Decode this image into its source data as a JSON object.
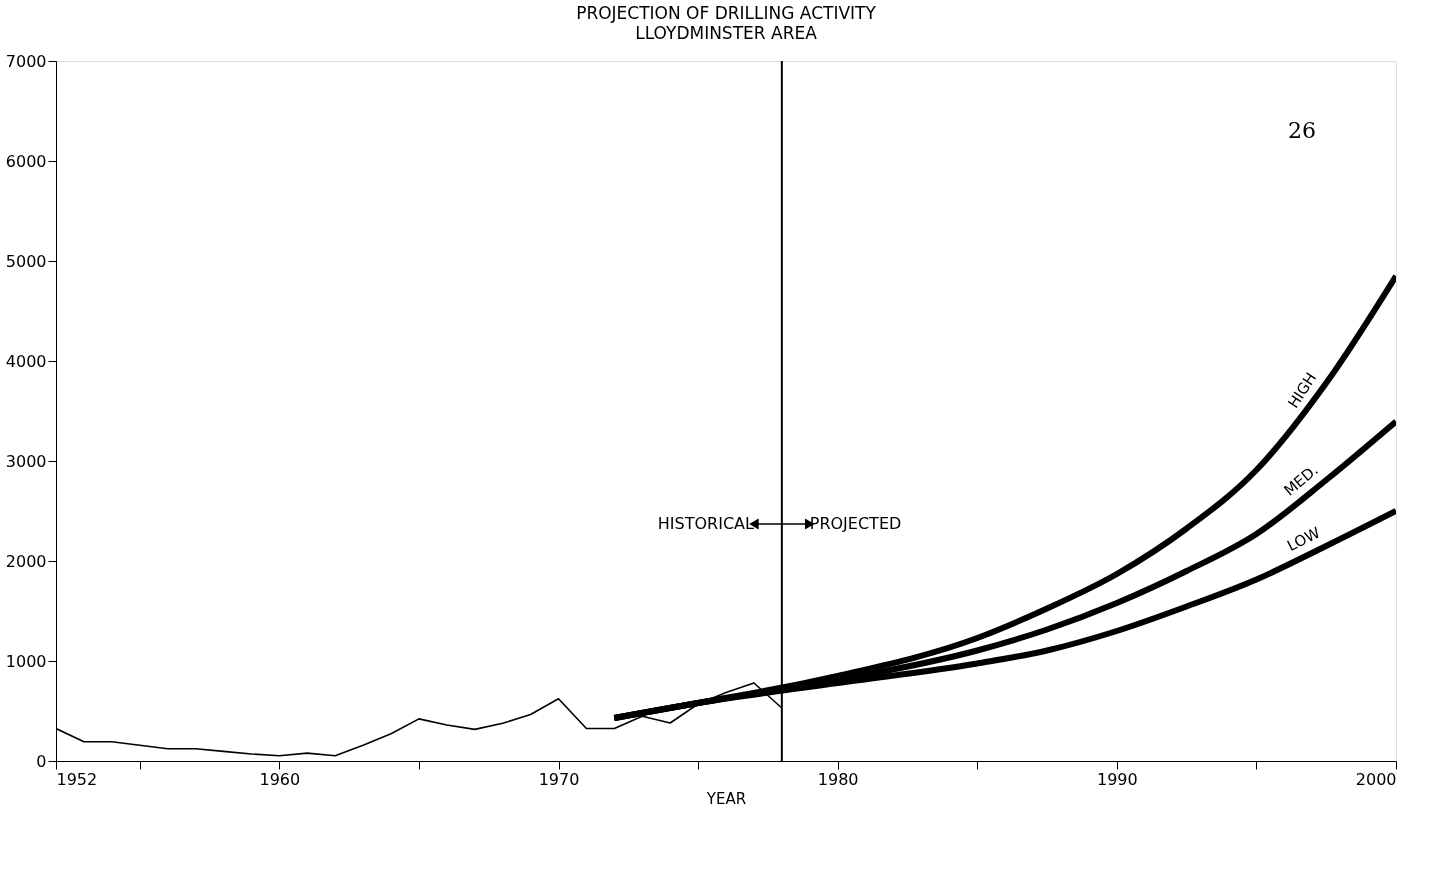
{
  "chart_data": {
    "type": "line",
    "title": "PROJECTION OF DRILLING ACTIVITY",
    "subtitle": "LLOYDMINSTER AREA",
    "xlabel": "YEAR",
    "xlim": [
      1952,
      2000
    ],
    "ylim": [
      0,
      7000
    ],
    "xticks": [
      1952,
      {
        "value": 1955,
        "label": null
      },
      1960,
      {
        "value": 1965,
        "label": null
      },
      1970,
      {
        "value": 1975,
        "label": null
      },
      1980,
      {
        "value": 1985,
        "label": null
      },
      1990,
      {
        "value": 1995,
        "label": null
      },
      2000
    ],
    "yticks": [
      0,
      1000,
      2000,
      3000,
      4000,
      5000,
      6000,
      7000
    ],
    "grid": false,
    "legend": false,
    "marker": "none",
    "line_style": "solid",
    "series": [
      {
        "color": "#000000",
        "x": [
          1952,
          1953,
          1954,
          1955,
          1956,
          1957,
          1958,
          1959,
          1960,
          1961,
          1962,
          1963,
          1964,
          1965,
          1966,
          1967,
          1968,
          1969,
          1970,
          1971,
          1972,
          1973,
          1974,
          1975,
          1976,
          1977,
          1978
        ],
        "values": [
          325,
          193,
          193,
          158,
          123,
          123,
          96,
          70,
          53,
          79,
          53,
          158,
          272,
          421,
          360,
          316,
          377,
          465,
          623,
          325,
          325,
          447,
          380,
          570,
          684,
          780,
          530
        ]
      },
      {
        "name": "HIGH",
        "color": "#000000",
        "x": [
          1972,
          1975,
          1980,
          1985,
          1987.5,
          1990,
          1992.5,
          1995,
          1997.5,
          2000
        ],
        "values": [
          430,
          580,
          850,
          1230,
          1525,
          1870,
          2325,
          2910,
          3780,
          4850
        ]
      },
      {
        "name": "MED.",
        "color": "#000000",
        "x": [
          1972,
          1975,
          1980,
          1985,
          1987.5,
          1990,
          1992.5,
          1995,
          1997.5,
          2000
        ],
        "values": [
          430,
          580,
          810,
          1105,
          1315,
          1580,
          1900,
          2270,
          2810,
          3395
        ]
      },
      {
        "name": "LOW",
        "color": "#000000",
        "x": [
          1972,
          1975,
          1980,
          1985,
          1987.5,
          1990,
          1992.5,
          1995,
          1997.5,
          2000
        ],
        "values": [
          430,
          580,
          780,
          975,
          1105,
          1300,
          1545,
          1815,
          2150,
          2500
        ]
      }
    ],
    "ref_lines": [
      {
        "axis": "x",
        "value": 1978,
        "label": null
      }
    ],
    "annotations": [
      {
        "text": "HISTORICAL",
        "x": 1977,
        "y": 2370
      },
      {
        "text": "PROJECTED",
        "x": 1979,
        "y": 2370
      },
      "26"
    ]
  }
}
